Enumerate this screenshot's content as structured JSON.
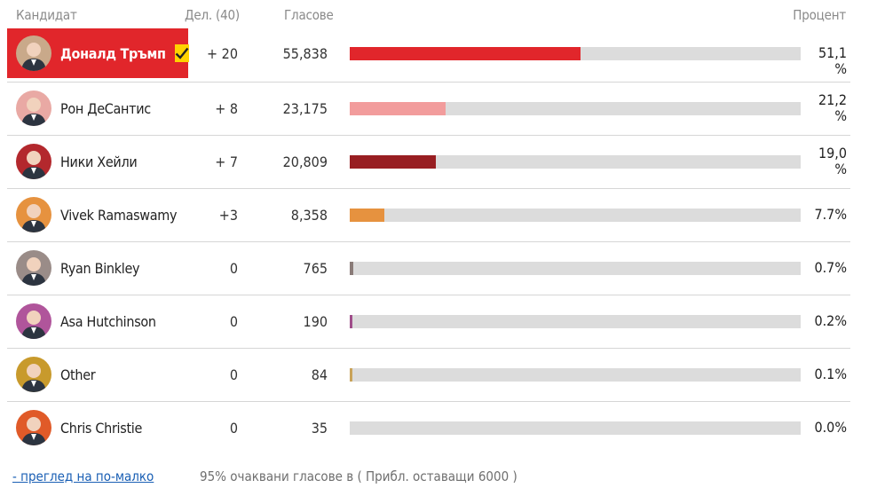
{
  "header": {
    "candidate": "Кандидат",
    "delegates": "Дел. (40)",
    "votes": "Гласове",
    "percent": "Процент"
  },
  "candidates": [
    {
      "name": "Доналд Тръмп",
      "delegates": "+ 20",
      "votes": "55,838",
      "percent": "51,1 %",
      "share": 51.1,
      "color": "#e1262b",
      "winner": true,
      "avatar_bg": "#c9a98a",
      "icon": "check-icon"
    },
    {
      "name": "Рон ДеСантис",
      "delegates": "+ 8",
      "votes": "23,175",
      "percent": "21,2 %",
      "share": 21.2,
      "color": "#f29c9c",
      "winner": false,
      "avatar_bg": "#e9a9a4"
    },
    {
      "name": "Ники Хейли",
      "delegates": "+ 7",
      "votes": "20,809",
      "percent": "19,0 %",
      "share": 19.0,
      "color": "#981e22",
      "winner": false,
      "avatar_bg": "#b3282d"
    },
    {
      "name": "Vivek Ramaswamy",
      "delegates": "+3",
      "votes": "8,358",
      "percent": "7.7%",
      "share": 7.7,
      "color": "#e6923f",
      "winner": false,
      "avatar_bg": "#e6923f"
    },
    {
      "name": "Ryan Binkley",
      "delegates": "0",
      "votes": "765",
      "percent": "0.7%",
      "share": 0.7,
      "color": "#8a7b78",
      "winner": false,
      "avatar_bg": "#9a8c88"
    },
    {
      "name": "Asa Hutchinson",
      "delegates": "0",
      "votes": "190",
      "percent": "0.2%",
      "share": 0.2,
      "color": "#a04d8a",
      "winner": false,
      "avatar_bg": "#b0559b"
    },
    {
      "name": "Other",
      "delegates": "0",
      "votes": "84",
      "percent": "0.1%",
      "share": 0.1,
      "color": "#c9a35a",
      "winner": false,
      "avatar_bg": "#c89a2c"
    },
    {
      "name": "Chris Christie",
      "delegates": "0",
      "votes": "35",
      "percent": "0.0%",
      "share": 0.0,
      "color": "#e05a28",
      "winner": false,
      "avatar_bg": "#e05a28"
    }
  ],
  "footer": {
    "link": "- преглед на по-малко",
    "note": "95% очаквани гласове в ( Прибл. оставащи 6000 )"
  }
}
